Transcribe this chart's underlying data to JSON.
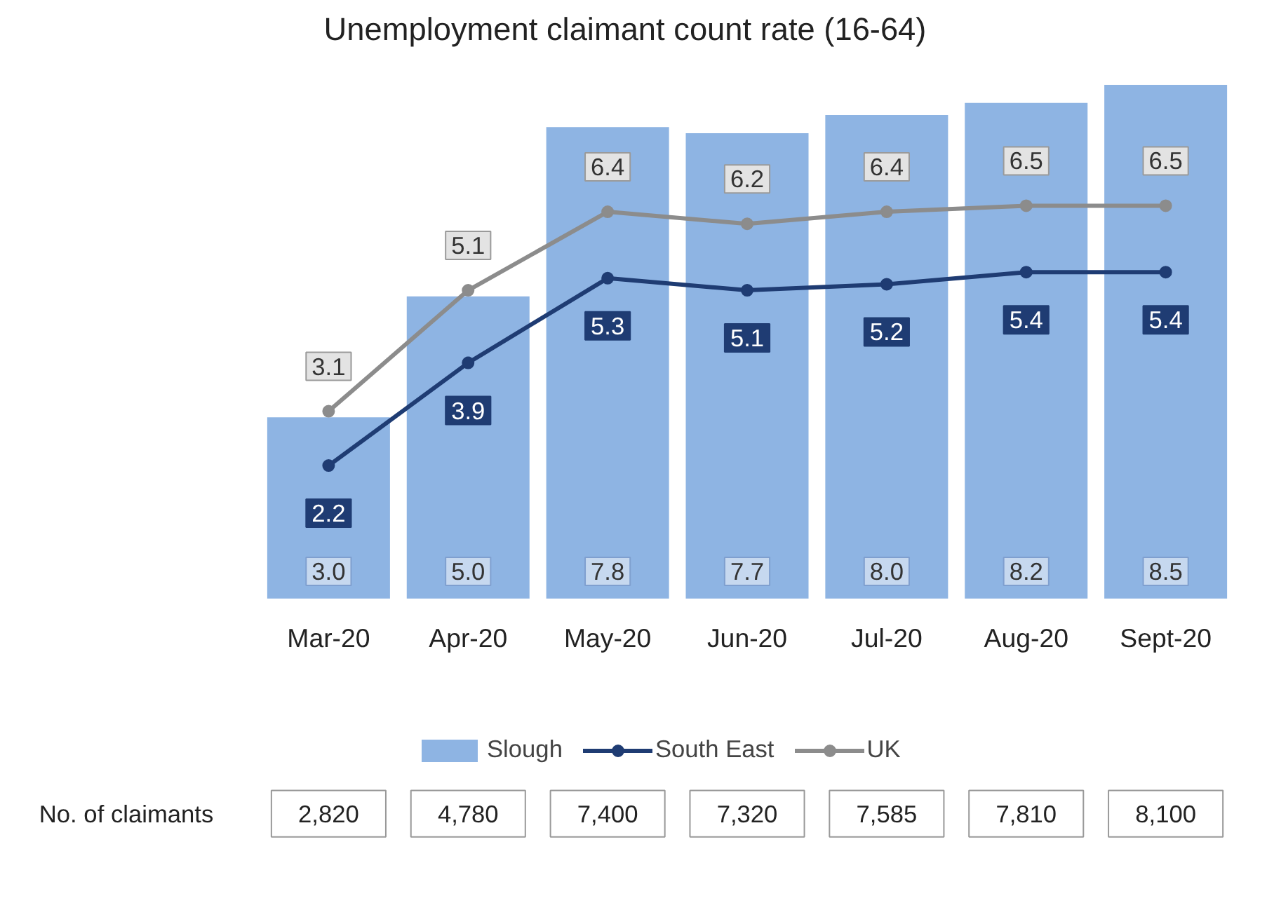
{
  "chart_data": {
    "type": "bar",
    "title": "Unemployment claimant count rate (16-64)",
    "categories": [
      "Mar-20",
      "Apr-20",
      "May-20",
      "Jun-20",
      "Jul-20",
      "Aug-20",
      "Sept-20"
    ],
    "series": [
      {
        "name": "Slough",
        "color": "#8eb4e3",
        "values": [
          3.0,
          5.0,
          7.8,
          7.7,
          8.0,
          8.2,
          8.5
        ],
        "value_labels": [
          "3.0",
          "5.0",
          "7.8",
          "7.7",
          "8.0",
          "8.2",
          "8.5"
        ]
      },
      {
        "name": "South East",
        "type": "line",
        "color": "#1f3c73",
        "values": [
          2.2,
          3.9,
          5.3,
          5.1,
          5.2,
          5.4,
          5.4
        ],
        "value_labels": [
          "2.2",
          "3.9",
          "5.3",
          "5.1",
          "5.2",
          "5.4",
          "5.4"
        ]
      },
      {
        "name": "UK",
        "type": "line",
        "color": "#8c8c8c",
        "values": [
          3.1,
          5.1,
          6.4,
          6.2,
          6.4,
          6.5,
          6.5
        ],
        "value_labels": [
          "3.1",
          "5.1",
          "6.4",
          "6.2",
          "6.4",
          "6.5",
          "6.5"
        ]
      }
    ],
    "marker": "circle",
    "legend": "bottom",
    "grid": false,
    "annotations": [
      "No. of claimants",
      "2,820",
      "4,780",
      "7,400",
      "7,320",
      "7,585",
      "7,810",
      "8,100"
    ]
  }
}
